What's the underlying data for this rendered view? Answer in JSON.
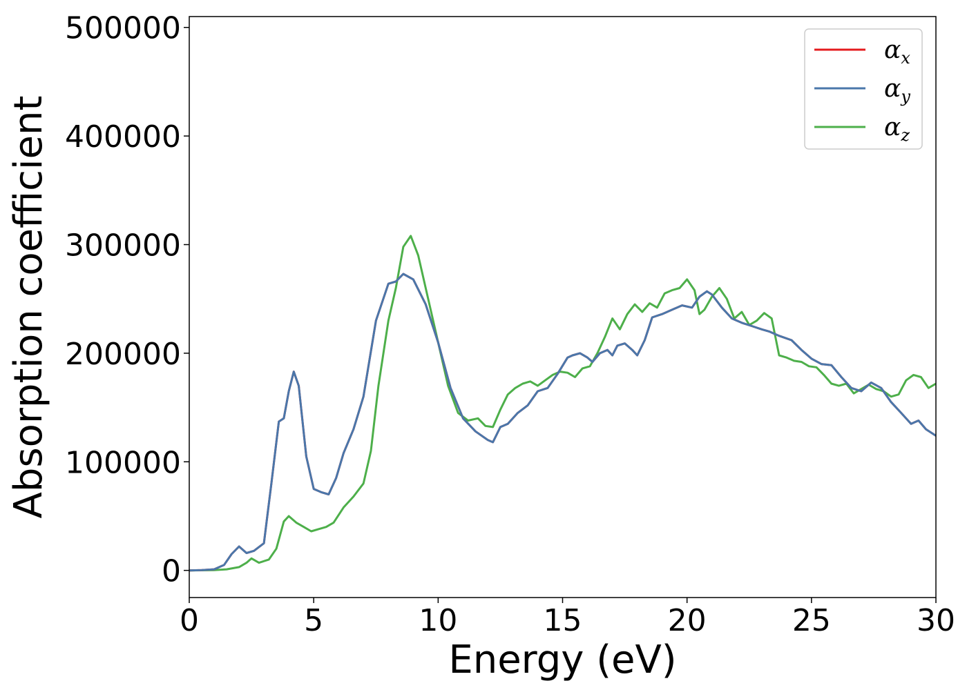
{
  "chart_data": {
    "type": "line",
    "title": "",
    "xlabel": "Energy (eV)",
    "ylabel": "Absorption coefficient",
    "xlim": [
      0,
      30
    ],
    "ylim": [
      -25000,
      510000
    ],
    "xticks": [
      0,
      5,
      10,
      15,
      20,
      25,
      30
    ],
    "yticks": [
      0,
      100000,
      200000,
      300000,
      400000,
      500000
    ],
    "grid": false,
    "legend_position": "top-right",
    "colors": {
      "alpha_x": "#e41a1c",
      "alpha_y": "#4a77aa",
      "alpha_z": "#4daf4a"
    },
    "legend": [
      {
        "symbol": "α",
        "subscript": "x",
        "color": "#e41a1c"
      },
      {
        "symbol": "α",
        "subscript": "y",
        "color": "#4a77aa"
      },
      {
        "symbol": "α",
        "subscript": "z",
        "color": "#4daf4a"
      }
    ],
    "series": [
      {
        "name": "α_x",
        "color": "#e41a1c",
        "x": [
          0,
          0.5,
          1.0,
          1.4,
          1.7,
          2.0,
          2.3,
          2.6,
          3.0,
          3.3,
          3.6,
          3.8,
          4.0,
          4.2,
          4.4,
          4.7,
          5.0,
          5.3,
          5.6,
          5.9,
          6.2,
          6.6,
          7.0,
          7.5,
          8.0,
          8.3,
          8.6,
          9.0,
          9.5,
          10.0,
          10.5,
          11.0,
          11.5,
          12.0,
          12.2,
          12.5,
          12.8,
          13.2,
          13.6,
          14.0,
          14.4,
          14.8,
          15.2,
          15.4,
          15.7,
          16.0,
          16.2,
          16.5,
          16.8,
          17.0,
          17.2,
          17.5,
          17.8,
          18.0,
          18.3,
          18.6,
          19.0,
          19.4,
          19.8,
          20.2,
          20.5,
          20.8,
          21.0,
          21.4,
          21.8,
          22.2,
          22.6,
          23.0,
          23.3,
          23.7,
          24.2,
          24.6,
          25.0,
          25.4,
          25.8,
          26.2,
          26.6,
          27.0,
          27.4,
          27.8,
          28.2,
          28.6,
          29.0,
          29.3,
          29.6,
          30.0
        ],
        "y": [
          0,
          200,
          1000,
          5000,
          15000,
          22000,
          16000,
          18000,
          25000,
          80000,
          137000,
          140000,
          165000,
          183000,
          170000,
          105000,
          75000,
          72000,
          70000,
          85000,
          108000,
          130000,
          160000,
          230000,
          264000,
          266000,
          273000,
          268000,
          245000,
          210000,
          168000,
          140000,
          128000,
          120000,
          118000,
          132000,
          135000,
          145000,
          152000,
          165000,
          168000,
          181000,
          196000,
          198000,
          200000,
          196000,
          192000,
          200000,
          203000,
          198000,
          207000,
          209000,
          203000,
          198000,
          212000,
          233000,
          236000,
          240000,
          244000,
          242000,
          252000,
          257000,
          254000,
          242000,
          232000,
          228000,
          225000,
          222000,
          220000,
          216000,
          212000,
          203000,
          195000,
          190000,
          189000,
          178000,
          168000,
          165000,
          173000,
          168000,
          155000,
          145000,
          135000,
          138000,
          130000,
          124000
        ]
      },
      {
        "name": "α_y",
        "color": "#4a77aa",
        "x": [
          0,
          0.5,
          1.0,
          1.4,
          1.7,
          2.0,
          2.3,
          2.6,
          3.0,
          3.3,
          3.6,
          3.8,
          4.0,
          4.2,
          4.4,
          4.7,
          5.0,
          5.3,
          5.6,
          5.9,
          6.2,
          6.6,
          7.0,
          7.5,
          8.0,
          8.3,
          8.6,
          9.0,
          9.5,
          10.0,
          10.5,
          11.0,
          11.5,
          12.0,
          12.2,
          12.5,
          12.8,
          13.2,
          13.6,
          14.0,
          14.4,
          14.8,
          15.2,
          15.4,
          15.7,
          16.0,
          16.2,
          16.5,
          16.8,
          17.0,
          17.2,
          17.5,
          17.8,
          18.0,
          18.3,
          18.6,
          19.0,
          19.4,
          19.8,
          20.2,
          20.5,
          20.8,
          21.0,
          21.4,
          21.8,
          22.2,
          22.6,
          23.0,
          23.3,
          23.7,
          24.2,
          24.6,
          25.0,
          25.4,
          25.8,
          26.2,
          26.6,
          27.0,
          27.4,
          27.8,
          28.2,
          28.6,
          29.0,
          29.3,
          29.6,
          30.0
        ],
        "y": [
          0,
          200,
          1000,
          5000,
          15000,
          22000,
          16000,
          18000,
          25000,
          80000,
          137000,
          140000,
          165000,
          183000,
          170000,
          105000,
          75000,
          72000,
          70000,
          85000,
          108000,
          130000,
          160000,
          230000,
          264000,
          266000,
          273000,
          268000,
          245000,
          210000,
          168000,
          140000,
          128000,
          120000,
          118000,
          132000,
          135000,
          145000,
          152000,
          165000,
          168000,
          181000,
          196000,
          198000,
          200000,
          196000,
          192000,
          200000,
          203000,
          198000,
          207000,
          209000,
          203000,
          198000,
          212000,
          233000,
          236000,
          240000,
          244000,
          242000,
          252000,
          257000,
          254000,
          242000,
          232000,
          228000,
          225000,
          222000,
          220000,
          216000,
          212000,
          203000,
          195000,
          190000,
          189000,
          178000,
          168000,
          165000,
          173000,
          168000,
          155000,
          145000,
          135000,
          138000,
          130000,
          124000
        ]
      },
      {
        "name": "α_z",
        "color": "#4daf4a",
        "x": [
          0,
          0.5,
          1.0,
          1.5,
          2.0,
          2.3,
          2.5,
          2.8,
          3.2,
          3.5,
          3.8,
          4.0,
          4.3,
          4.6,
          4.9,
          5.2,
          5.5,
          5.8,
          6.2,
          6.6,
          7.0,
          7.3,
          7.6,
          8.0,
          8.3,
          8.6,
          8.9,
          9.2,
          9.6,
          10.0,
          10.4,
          10.8,
          11.2,
          11.6,
          11.9,
          12.2,
          12.5,
          12.8,
          13.1,
          13.4,
          13.7,
          14.0,
          14.3,
          14.6,
          14.9,
          15.2,
          15.5,
          15.8,
          16.1,
          16.4,
          16.7,
          17.0,
          17.3,
          17.6,
          17.9,
          18.2,
          18.5,
          18.8,
          19.1,
          19.4,
          19.7,
          20.0,
          20.3,
          20.5,
          20.7,
          21.0,
          21.3,
          21.6,
          21.9,
          22.2,
          22.5,
          22.8,
          23.1,
          23.4,
          23.7,
          24.0,
          24.3,
          24.6,
          24.9,
          25.2,
          25.5,
          25.8,
          26.1,
          26.4,
          26.7,
          27.0,
          27.3,
          27.6,
          27.9,
          28.2,
          28.5,
          28.8,
          29.1,
          29.4,
          29.7,
          30.0
        ],
        "y": [
          0,
          100,
          300,
          1000,
          3000,
          7000,
          11000,
          7000,
          10000,
          20000,
          45000,
          50000,
          44000,
          40000,
          36000,
          38000,
          40000,
          44000,
          58000,
          68000,
          80000,
          110000,
          170000,
          230000,
          260000,
          298000,
          308000,
          290000,
          250000,
          210000,
          170000,
          145000,
          138000,
          140000,
          133000,
          132000,
          148000,
          162000,
          168000,
          172000,
          174000,
          170000,
          175000,
          180000,
          183000,
          182000,
          178000,
          186000,
          188000,
          200000,
          215000,
          232000,
          222000,
          236000,
          245000,
          238000,
          246000,
          242000,
          255000,
          258000,
          260000,
          268000,
          258000,
          236000,
          240000,
          252000,
          260000,
          250000,
          232000,
          238000,
          226000,
          230000,
          237000,
          232000,
          198000,
          196000,
          193000,
          192000,
          188000,
          187000,
          180000,
          172000,
          170000,
          172000,
          163000,
          167000,
          171000,
          167000,
          165000,
          160000,
          162000,
          175000,
          180000,
          178000,
          168000,
          172000
        ]
      }
    ]
  }
}
